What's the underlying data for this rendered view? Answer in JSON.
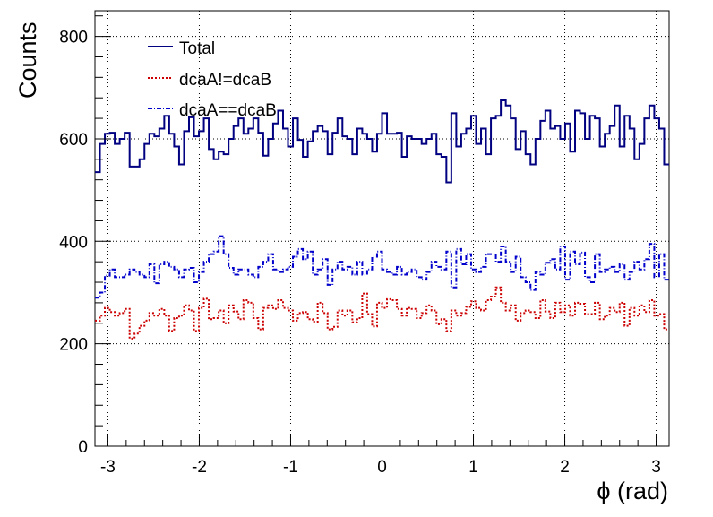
{
  "chart_data": {
    "type": "line",
    "xlabel": "ϕ (rad)",
    "ylabel": "Counts",
    "xlim": [
      -3.1416,
      3.1416
    ],
    "ylim": [
      0,
      850
    ],
    "xticks": [
      -3,
      -2,
      -1,
      0,
      1,
      2,
      3
    ],
    "xtick_labels": [
      "-3",
      "-2",
      "-1",
      "0",
      "1",
      "2",
      "3"
    ],
    "yticks": [
      0,
      200,
      400,
      600,
      800
    ],
    "ytick_labels": [
      "0",
      "200",
      "400",
      "600",
      "800"
    ],
    "grid": true,
    "legend_position": "top-left",
    "step_histogram": true,
    "series": [
      {
        "name": "Total",
        "color": "#000080",
        "dash": "solid",
        "values": [
          535,
          590,
          610,
          612,
          590,
          600,
          612,
          546,
          546,
          560,
          590,
          610,
          605,
          620,
          645,
          610,
          585,
          550,
          615,
          642,
          605,
          615,
          640,
          580,
          560,
          575,
          570,
          600,
          625,
          640,
          610,
          620,
          640,
          612,
          567,
          600,
          630,
          655,
          620,
          585,
          640,
          598,
          565,
          595,
          615,
          625,
          615,
          570,
          612,
          640,
          605,
          600,
          570,
          620,
          610,
          600,
          575,
          610,
          650,
          610,
          610,
          612,
          565,
          605,
          600,
          600,
          590,
          600,
          610,
          570,
          565,
          515,
          650,
          585,
          610,
          620,
          645,
          590,
          620,
          570,
          640,
          645,
          675,
          665,
          640,
          580,
          615,
          570,
          550,
          600,
          635,
          655,
          620,
          625,
          600,
          630,
          575,
          655,
          650,
          600,
          645,
          640,
          585,
          610,
          625,
          665,
          585,
          645,
          620,
          560,
          590,
          640,
          665,
          640,
          620,
          550
        ]
      },
      {
        "name": "dcaA!=dcaB",
        "color": "#cc0000",
        "dash": "dotted",
        "values": [
          245,
          255,
          270,
          262,
          255,
          260,
          268,
          210,
          220,
          235,
          245,
          260,
          255,
          268,
          255,
          225,
          250,
          255,
          275,
          265,
          225,
          270,
          288,
          248,
          250,
          265,
          240,
          275,
          263,
          248,
          285,
          280,
          250,
          228,
          270,
          275,
          268,
          285,
          270,
          265,
          245,
          260,
          262,
          248,
          243,
          280,
          260,
          228,
          233,
          265,
          255,
          265,
          242,
          250,
          298,
          258,
          234,
          280,
          270,
          287,
          285,
          268,
          255,
          270,
          268,
          250,
          260,
          275,
          265,
          238,
          248,
          225,
          265,
          255,
          260,
          272,
          283,
          270,
          265,
          285,
          292,
          310,
          280,
          265,
          275,
          245,
          260,
          265,
          262,
          250,
          285,
          263,
          250,
          280,
          262,
          275,
          255,
          280,
          278,
          258,
          258,
          280,
          248,
          255,
          270,
          262,
          280,
          235,
          270,
          255,
          275,
          262,
          285,
          255,
          258,
          228
        ]
      },
      {
        "name": "dcaA==dcaB",
        "color": "#0000cc",
        "dash": "dashdot",
        "values": [
          290,
          300,
          333,
          345,
          330,
          330,
          335,
          345,
          340,
          335,
          330,
          355,
          318,
          355,
          360,
          350,
          345,
          330,
          345,
          348,
          320,
          340,
          360,
          375,
          380,
          410,
          375,
          348,
          335,
          345,
          345,
          335,
          330,
          350,
          360,
          375,
          345,
          340,
          345,
          350,
          370,
          385,
          365,
          380,
          335,
          345,
          365,
          315,
          345,
          360,
          345,
          350,
          335,
          360,
          335,
          345,
          370,
          380,
          345,
          340,
          335,
          350,
          335,
          340,
          345,
          330,
          325,
          340,
          360,
          350,
          345,
          380,
          310,
          385,
          355,
          375,
          345,
          340,
          350,
          375,
          375,
          360,
          390,
          360,
          340,
          370,
          330,
          320,
          305,
          340,
          335,
          358,
          365,
          345,
          390,
          325,
          380,
          355,
          378,
          330,
          320,
          375,
          340,
          345,
          350,
          340,
          355,
          325,
          340,
          360,
          345,
          365,
          395,
          330,
          375,
          325
        ]
      }
    ]
  }
}
